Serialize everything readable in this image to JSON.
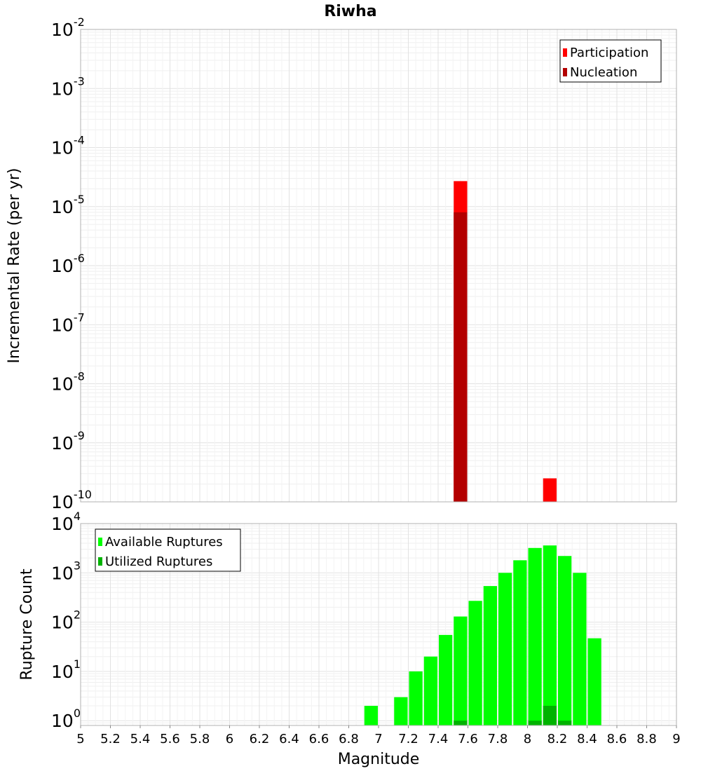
{
  "title": "Riwha",
  "chart_data": [
    {
      "type": "bar",
      "panel": "top",
      "ylabel": "Incremental Rate (per yr)",
      "xlabel": "",
      "yscale": "log",
      "ylim": [
        1e-10,
        0.01
      ],
      "xlim": [
        5,
        9
      ],
      "grid": true,
      "legend_position": "top-right",
      "ytick_labels": [
        {
          "base": "10",
          "exp": "-10",
          "value": 1e-10
        },
        {
          "base": "10",
          "exp": "-9",
          "value": 1e-09
        },
        {
          "base": "10",
          "exp": "-8",
          "value": 1e-08
        },
        {
          "base": "10",
          "exp": "-7",
          "value": 1e-07
        },
        {
          "base": "10",
          "exp": "-6",
          "value": 1e-06
        },
        {
          "base": "10",
          "exp": "-5",
          "value": 1e-05
        },
        {
          "base": "10",
          "exp": "-4",
          "value": 0.0001
        },
        {
          "base": "10",
          "exp": "-3",
          "value": 0.001
        },
        {
          "base": "10",
          "exp": "-2",
          "value": 0.01
        }
      ],
      "series": [
        {
          "name": "Participation",
          "color": "#ff0000",
          "points": [
            {
              "x": 7.55,
              "y": 2.7e-05
            },
            {
              "x": 8.15,
              "y": 2.5e-10
            }
          ]
        },
        {
          "name": "Nucleation",
          "color": "#b30000",
          "points": [
            {
              "x": 7.55,
              "y": 8e-06
            }
          ]
        }
      ]
    },
    {
      "type": "bar",
      "panel": "bottom",
      "ylabel": "Rupture Count",
      "xlabel": "Magnitude",
      "yscale": "log",
      "ylim": [
        0.8,
        10000
      ],
      "xlim": [
        5,
        9
      ],
      "grid": true,
      "legend_position": "top-left",
      "ytick_labels": [
        {
          "base": "10",
          "exp": "0",
          "value": 1
        },
        {
          "base": "10",
          "exp": "1",
          "value": 10
        },
        {
          "base": "10",
          "exp": "2",
          "value": 100
        },
        {
          "base": "10",
          "exp": "3",
          "value": 1000
        },
        {
          "base": "10",
          "exp": "4",
          "value": 10000
        }
      ],
      "xtick_labels": [
        "5",
        "5.2",
        "5.4",
        "5.6",
        "5.8",
        "6",
        "6.2",
        "6.4",
        "6.6",
        "6.8",
        "7",
        "7.2",
        "7.4",
        "7.6",
        "7.8",
        "8",
        "8.2",
        "8.4",
        "8.6",
        "8.8",
        "9"
      ],
      "series": [
        {
          "name": "Available Ruptures",
          "color": "#00ff00",
          "points": [
            {
              "x": 6.95,
              "y": 2
            },
            {
              "x": 7.15,
              "y": 3
            },
            {
              "x": 7.25,
              "y": 10
            },
            {
              "x": 7.35,
              "y": 20
            },
            {
              "x": 7.45,
              "y": 55
            },
            {
              "x": 7.55,
              "y": 130
            },
            {
              "x": 7.65,
              "y": 270
            },
            {
              "x": 7.75,
              "y": 540
            },
            {
              "x": 7.85,
              "y": 1000
            },
            {
              "x": 7.95,
              "y": 1800
            },
            {
              "x": 8.05,
              "y": 3200
            },
            {
              "x": 8.15,
              "y": 3600
            },
            {
              "x": 8.25,
              "y": 2200
            },
            {
              "x": 8.35,
              "y": 1000
            },
            {
              "x": 8.45,
              "y": 47
            }
          ]
        },
        {
          "name": "Utilized Ruptures",
          "color": "#00b300",
          "points": [
            {
              "x": 7.55,
              "y": 1
            },
            {
              "x": 8.05,
              "y": 1
            },
            {
              "x": 8.15,
              "y": 2
            },
            {
              "x": 8.25,
              "y": 1
            }
          ]
        }
      ]
    }
  ]
}
